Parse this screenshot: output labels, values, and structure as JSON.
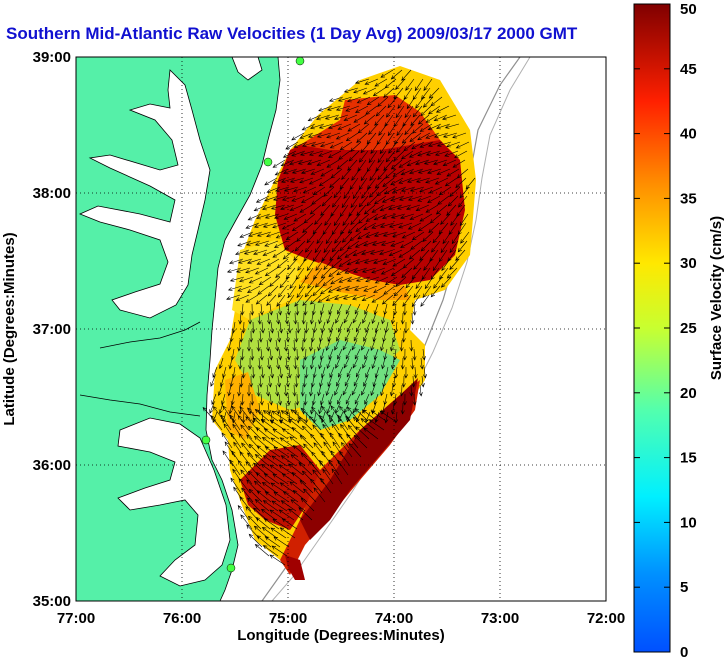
{
  "title": "Southern Mid-Atlantic Raw Velocities (1 Day Avg) 2009/03/17 2000 GMT",
  "map": {
    "xlabel": "Longitude (Degrees:Minutes)",
    "ylabel": "Latitude (Degrees:Minutes)",
    "lon_range": [
      -77,
      -72
    ],
    "lat_range": [
      35,
      39
    ],
    "x_ticks": [
      "77:00",
      "76:00",
      "75:00",
      "74:00",
      "73:00",
      "72:00"
    ],
    "y_ticks": [
      "39:00",
      "38:00",
      "37:00",
      "36:00",
      "35:00"
    ],
    "grid": "dotted",
    "land_color": "#55f0a8",
    "water_color": "#ffffff"
  },
  "colorbar": {
    "label": "Surface Velocity (cm/s)",
    "min": 0,
    "max": 50,
    "ticks": [
      "0",
      "5",
      "10",
      "15",
      "20",
      "25",
      "30",
      "35",
      "40",
      "45",
      "50"
    ]
  }
}
